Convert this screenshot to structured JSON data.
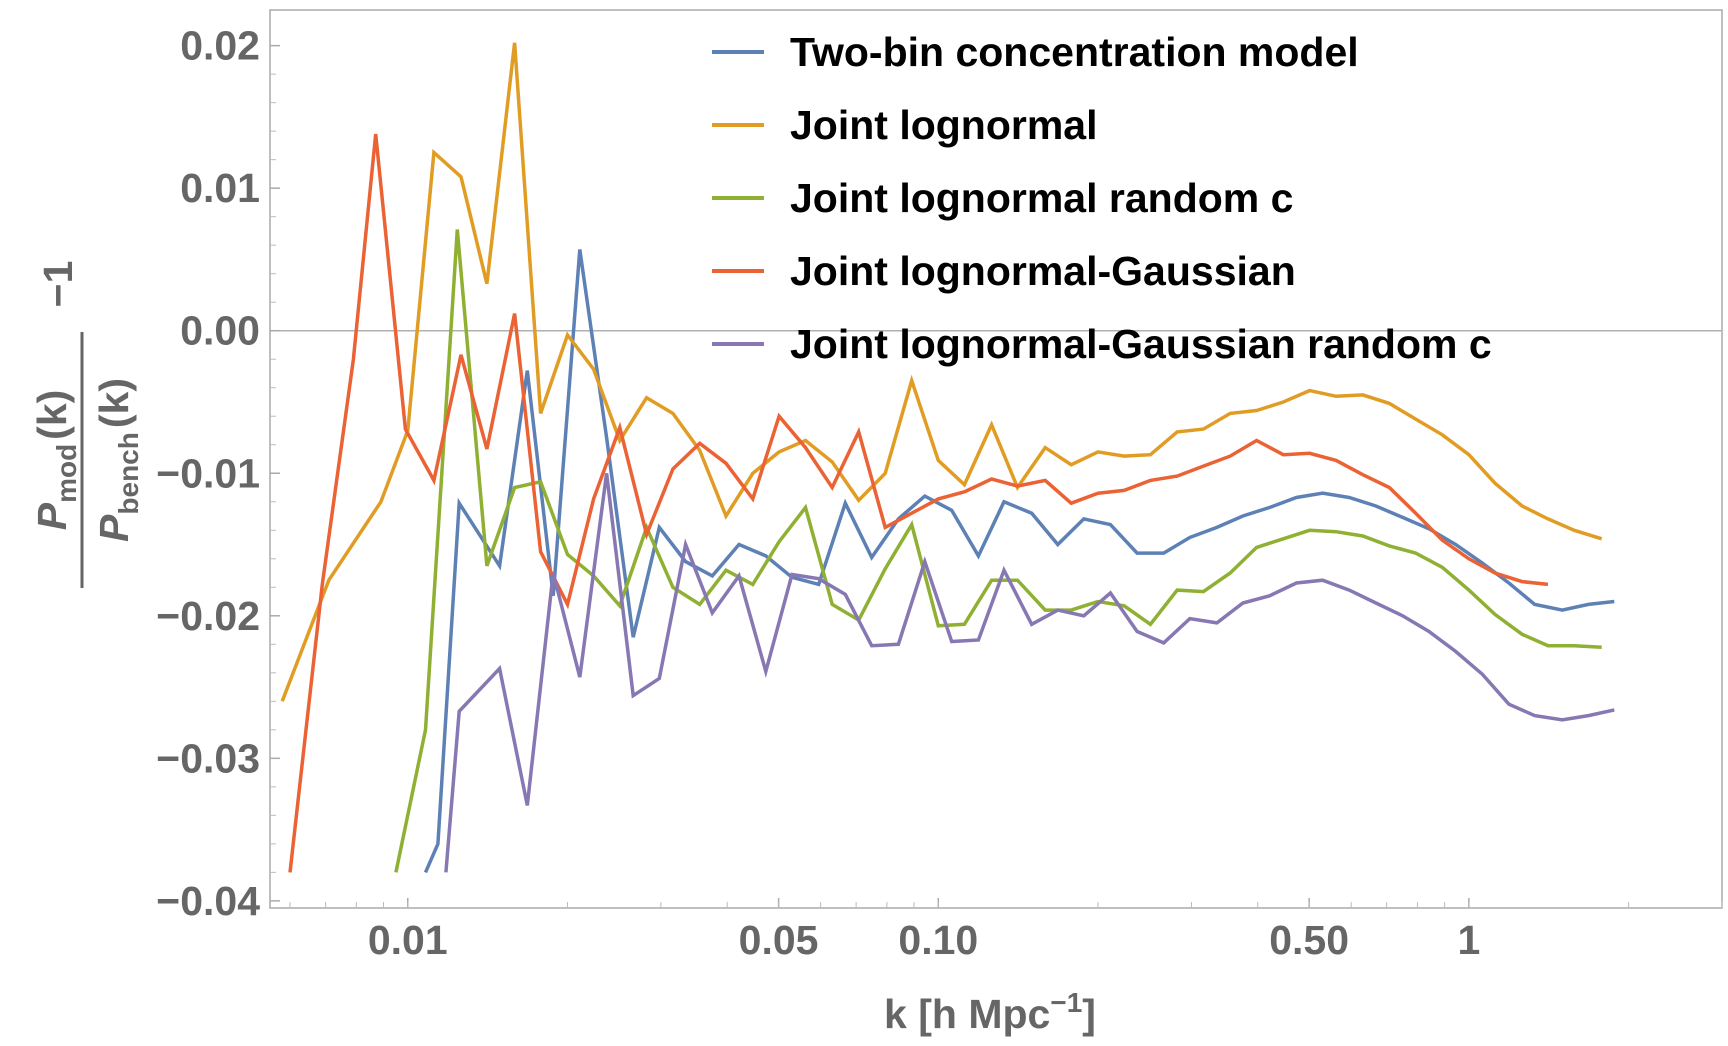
{
  "chart_data": {
    "type": "line",
    "title": "",
    "xlabel": "k [h Mpc",
    "xlabel_exponent": "−1",
    "xlabel_close": "]",
    "ylabel": {
      "numerator": "P",
      "numerator_sub": "mod",
      "denominator": "P",
      "denominator_sub": "bench",
      "arg": "(k)",
      "suffix": "−1"
    },
    "x_scale": "log",
    "xlim": [
      0.0055,
      3.0
    ],
    "ylim": [
      -0.0405,
      0.0225
    ],
    "x_ticks": [
      {
        "value": 0.01,
        "label": "0.01"
      },
      {
        "value": 0.05,
        "label": "0.05"
      },
      {
        "value": 0.1,
        "label": "0.10"
      },
      {
        "value": 0.5,
        "label": "0.50"
      },
      {
        "value": 1,
        "label": "1"
      }
    ],
    "y_ticks": [
      {
        "value": 0.02,
        "label": "0.02"
      },
      {
        "value": 0.01,
        "label": "0.01"
      },
      {
        "value": 0.0,
        "label": "0.00"
      },
      {
        "value": -0.01,
        "label": "−0.01"
      },
      {
        "value": -0.02,
        "label": "−0.02"
      },
      {
        "value": -0.03,
        "label": "−0.03"
      },
      {
        "value": -0.04,
        "label": "−0.04"
      }
    ],
    "zero_line": true,
    "legend_position": "top-right",
    "series": [
      {
        "name": "Two-bin concentration model",
        "color": "#5e81b5",
        "points": [
          [
            0.0108,
            -0.038
          ],
          [
            0.0114,
            -0.036
          ],
          [
            0.0125,
            -0.0121
          ],
          [
            0.0149,
            -0.0165
          ],
          [
            0.0168,
            -0.0028
          ],
          [
            0.0188,
            -0.0186
          ],
          [
            0.0211,
            0.0057
          ],
          [
            0.0237,
            -0.0075
          ],
          [
            0.0266,
            -0.0215
          ],
          [
            0.0298,
            -0.0138
          ],
          [
            0.0334,
            -0.0162
          ],
          [
            0.0375,
            -0.0172
          ],
          [
            0.0421,
            -0.015
          ],
          [
            0.0473,
            -0.0158
          ],
          [
            0.053,
            -0.0173
          ],
          [
            0.0595,
            -0.0178
          ],
          [
            0.0668,
            -0.0121
          ],
          [
            0.0749,
            -0.0159
          ],
          [
            0.0841,
            -0.0132
          ],
          [
            0.0943,
            -0.0116
          ],
          [
            0.106,
            -0.0126
          ],
          [
            0.119,
            -0.0158
          ],
          [
            0.133,
            -0.012
          ],
          [
            0.15,
            -0.0128
          ],
          [
            0.168,
            -0.015
          ],
          [
            0.188,
            -0.0132
          ],
          [
            0.211,
            -0.0136
          ],
          [
            0.237,
            -0.0156
          ],
          [
            0.266,
            -0.0156
          ],
          [
            0.298,
            -0.0145
          ],
          [
            0.335,
            -0.0138
          ],
          [
            0.375,
            -0.013
          ],
          [
            0.421,
            -0.0124
          ],
          [
            0.473,
            -0.0117
          ],
          [
            0.53,
            -0.0114
          ],
          [
            0.595,
            -0.0117
          ],
          [
            0.668,
            -0.0123
          ],
          [
            0.75,
            -0.0131
          ],
          [
            0.841,
            -0.0139
          ],
          [
            0.944,
            -0.015
          ],
          [
            1.06,
            -0.0163
          ],
          [
            1.19,
            -0.0177
          ],
          [
            1.33,
            -0.0192
          ],
          [
            1.5,
            -0.0196
          ],
          [
            1.68,
            -0.0192
          ],
          [
            1.88,
            -0.019
          ]
        ]
      },
      {
        "name": "Joint lognormal",
        "color": "#e19c24",
        "points": [
          [
            0.0058,
            -0.026
          ],
          [
            0.0071,
            -0.0175
          ],
          [
            0.0089,
            -0.012
          ],
          [
            0.01,
            -0.007
          ],
          [
            0.0112,
            0.0125
          ],
          [
            0.0126,
            0.0108
          ],
          [
            0.0141,
            0.0033
          ],
          [
            0.0159,
            0.0202
          ],
          [
            0.0178,
            -0.0058
          ],
          [
            0.02,
            -0.0003
          ],
          [
            0.0224,
            -0.0027
          ],
          [
            0.0251,
            -0.0077
          ],
          [
            0.0282,
            -0.0047
          ],
          [
            0.0316,
            -0.0058
          ],
          [
            0.0355,
            -0.0084
          ],
          [
            0.0398,
            -0.013
          ],
          [
            0.0447,
            -0.01
          ],
          [
            0.0501,
            -0.0085
          ],
          [
            0.0562,
            -0.0077
          ],
          [
            0.0631,
            -0.0092
          ],
          [
            0.0708,
            -0.0119
          ],
          [
            0.0794,
            -0.01
          ],
          [
            0.0891,
            -0.0035
          ],
          [
            0.1,
            -0.0091
          ],
          [
            0.112,
            -0.0108
          ],
          [
            0.126,
            -0.0066
          ],
          [
            0.141,
            -0.011
          ],
          [
            0.159,
            -0.0082
          ],
          [
            0.178,
            -0.0094
          ],
          [
            0.2,
            -0.0085
          ],
          [
            0.224,
            -0.0088
          ],
          [
            0.251,
            -0.0087
          ],
          [
            0.282,
            -0.0071
          ],
          [
            0.316,
            -0.0069
          ],
          [
            0.355,
            -0.0058
          ],
          [
            0.398,
            -0.0056
          ],
          [
            0.447,
            -0.005
          ],
          [
            0.501,
            -0.0042
          ],
          [
            0.562,
            -0.0046
          ],
          [
            0.631,
            -0.0045
          ],
          [
            0.708,
            -0.0051
          ],
          [
            0.794,
            -0.0062
          ],
          [
            0.891,
            -0.0073
          ],
          [
            1.0,
            -0.0087
          ],
          [
            1.12,
            -0.0107
          ],
          [
            1.26,
            -0.0123
          ],
          [
            1.41,
            -0.0132
          ],
          [
            1.58,
            -0.014
          ],
          [
            1.78,
            -0.0146
          ]
        ]
      },
      {
        "name": "Joint lognormal random c",
        "color": "#8fb032",
        "points": [
          [
            0.0095,
            -0.038
          ],
          [
            0.0108,
            -0.028
          ],
          [
            0.0124,
            0.0071
          ],
          [
            0.0141,
            -0.0165
          ],
          [
            0.0159,
            -0.011
          ],
          [
            0.0178,
            -0.0106
          ],
          [
            0.02,
            -0.0157
          ],
          [
            0.0224,
            -0.0172
          ],
          [
            0.0251,
            -0.0193
          ],
          [
            0.0282,
            -0.0138
          ],
          [
            0.0316,
            -0.018
          ],
          [
            0.0355,
            -0.0192
          ],
          [
            0.0398,
            -0.0168
          ],
          [
            0.0447,
            -0.0178
          ],
          [
            0.0501,
            -0.0148
          ],
          [
            0.0562,
            -0.0124
          ],
          [
            0.0631,
            -0.0192
          ],
          [
            0.0708,
            -0.0203
          ],
          [
            0.0794,
            -0.0167
          ],
          [
            0.0891,
            -0.0136
          ],
          [
            0.1,
            -0.0207
          ],
          [
            0.112,
            -0.0206
          ],
          [
            0.126,
            -0.0175
          ],
          [
            0.141,
            -0.0175
          ],
          [
            0.159,
            -0.0196
          ],
          [
            0.178,
            -0.0196
          ],
          [
            0.2,
            -0.019
          ],
          [
            0.224,
            -0.0193
          ],
          [
            0.251,
            -0.0206
          ],
          [
            0.282,
            -0.0182
          ],
          [
            0.316,
            -0.0183
          ],
          [
            0.355,
            -0.017
          ],
          [
            0.398,
            -0.0152
          ],
          [
            0.447,
            -0.0146
          ],
          [
            0.501,
            -0.014
          ],
          [
            0.562,
            -0.0141
          ],
          [
            0.631,
            -0.0144
          ],
          [
            0.708,
            -0.0151
          ],
          [
            0.794,
            -0.0156
          ],
          [
            0.891,
            -0.0166
          ],
          [
            1.0,
            -0.0182
          ],
          [
            1.12,
            -0.0199
          ],
          [
            1.26,
            -0.0213
          ],
          [
            1.41,
            -0.0221
          ],
          [
            1.58,
            -0.0221
          ],
          [
            1.78,
            -0.0222
          ]
        ]
      },
      {
        "name": "Joint lognormal-Gaussian",
        "color": "#eb6235",
        "points": [
          [
            0.006,
            -0.038
          ],
          [
            0.0069,
            -0.0178
          ],
          [
            0.0079,
            -0.002
          ],
          [
            0.0087,
            0.0138
          ],
          [
            0.0099,
            -0.0069
          ],
          [
            0.0112,
            -0.0105
          ],
          [
            0.0126,
            -0.0017
          ],
          [
            0.0141,
            -0.0083
          ],
          [
            0.0159,
            0.0012
          ],
          [
            0.0178,
            -0.0155
          ],
          [
            0.02,
            -0.0192
          ],
          [
            0.0224,
            -0.0118
          ],
          [
            0.0251,
            -0.0068
          ],
          [
            0.0282,
            -0.0143
          ],
          [
            0.0316,
            -0.0097
          ],
          [
            0.0355,
            -0.0079
          ],
          [
            0.0398,
            -0.0093
          ],
          [
            0.0447,
            -0.0118
          ],
          [
            0.0501,
            -0.006
          ],
          [
            0.0562,
            -0.0082
          ],
          [
            0.0631,
            -0.011
          ],
          [
            0.0708,
            -0.0071
          ],
          [
            0.0794,
            -0.0138
          ],
          [
            0.0891,
            -0.0128
          ],
          [
            0.1,
            -0.0118
          ],
          [
            0.112,
            -0.0113
          ],
          [
            0.126,
            -0.0104
          ],
          [
            0.141,
            -0.0109
          ],
          [
            0.159,
            -0.0105
          ],
          [
            0.178,
            -0.0121
          ],
          [
            0.2,
            -0.0114
          ],
          [
            0.224,
            -0.0112
          ],
          [
            0.251,
            -0.0105
          ],
          [
            0.282,
            -0.0102
          ],
          [
            0.316,
            -0.0095
          ],
          [
            0.355,
            -0.0088
          ],
          [
            0.398,
            -0.0077
          ],
          [
            0.447,
            -0.0087
          ],
          [
            0.501,
            -0.0086
          ],
          [
            0.562,
            -0.0091
          ],
          [
            0.631,
            -0.0101
          ],
          [
            0.708,
            -0.011
          ],
          [
            0.794,
            -0.0128
          ],
          [
            0.891,
            -0.0147
          ],
          [
            1.0,
            -0.016
          ],
          [
            1.12,
            -0.017
          ],
          [
            1.26,
            -0.0176
          ],
          [
            1.41,
            -0.0178
          ]
        ]
      },
      {
        "name": "Joint lognormal-Gaussian random c",
        "color": "#8778b3",
        "points": [
          [
            0.0118,
            -0.038
          ],
          [
            0.0125,
            -0.0267
          ],
          [
            0.0149,
            -0.0237
          ],
          [
            0.0168,
            -0.0333
          ],
          [
            0.0188,
            -0.017
          ],
          [
            0.0211,
            -0.0243
          ],
          [
            0.0237,
            -0.01
          ],
          [
            0.0266,
            -0.0256
          ],
          [
            0.0298,
            -0.0244
          ],
          [
            0.0334,
            -0.015
          ],
          [
            0.0375,
            -0.0198
          ],
          [
            0.0421,
            -0.0172
          ],
          [
            0.0473,
            -0.0239
          ],
          [
            0.053,
            -0.0171
          ],
          [
            0.0595,
            -0.0174
          ],
          [
            0.0668,
            -0.0185
          ],
          [
            0.0749,
            -0.0221
          ],
          [
            0.0841,
            -0.022
          ],
          [
            0.0943,
            -0.0162
          ],
          [
            0.106,
            -0.0218
          ],
          [
            0.119,
            -0.0217
          ],
          [
            0.133,
            -0.0168
          ],
          [
            0.15,
            -0.0206
          ],
          [
            0.168,
            -0.0196
          ],
          [
            0.188,
            -0.02
          ],
          [
            0.211,
            -0.0184
          ],
          [
            0.237,
            -0.0211
          ],
          [
            0.266,
            -0.0219
          ],
          [
            0.298,
            -0.0202
          ],
          [
            0.335,
            -0.0205
          ],
          [
            0.375,
            -0.0191
          ],
          [
            0.421,
            -0.0186
          ],
          [
            0.473,
            -0.0177
          ],
          [
            0.53,
            -0.0175
          ],
          [
            0.595,
            -0.0182
          ],
          [
            0.668,
            -0.0191
          ],
          [
            0.75,
            -0.02
          ],
          [
            0.841,
            -0.0211
          ],
          [
            0.944,
            -0.0225
          ],
          [
            1.06,
            -0.0241
          ],
          [
            1.19,
            -0.0262
          ],
          [
            1.33,
            -0.027
          ],
          [
            1.5,
            -0.0273
          ],
          [
            1.68,
            -0.027
          ],
          [
            1.88,
            -0.0266
          ]
        ]
      }
    ]
  }
}
